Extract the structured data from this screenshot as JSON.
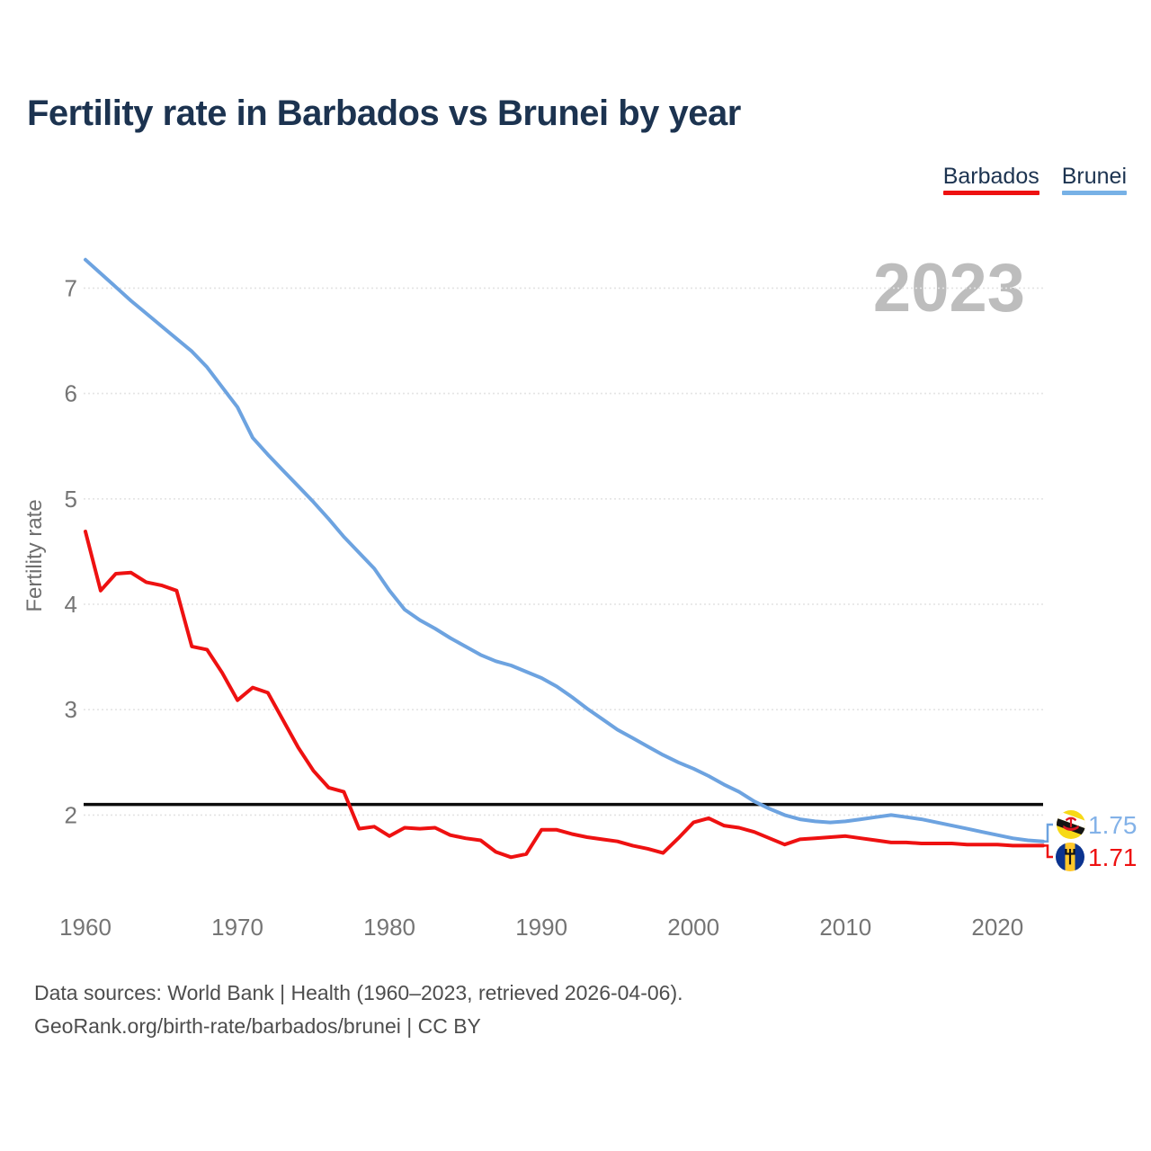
{
  "title": "Fertility rate in Barbados vs Brunei by year",
  "watermark": "2023",
  "legend": [
    {
      "label": "Barbados",
      "color": "#ee1111"
    },
    {
      "label": "Brunei",
      "color": "#77b1e6"
    }
  ],
  "y_axis": {
    "label": "Fertility rate",
    "ticks": [
      2,
      3,
      4,
      5,
      6,
      7
    ]
  },
  "x_axis": {
    "ticks": [
      1960,
      1970,
      1980,
      1990,
      2000,
      2010,
      2020
    ]
  },
  "end_labels": [
    {
      "series": "Brunei",
      "value": "1.75",
      "flag": "brunei-flag"
    },
    {
      "series": "Barbados",
      "value": "1.71",
      "flag": "barbados-flag"
    }
  ],
  "footer": {
    "line1": "Data sources: World Bank | Health (1960–2023, retrieved 2026-04-06).",
    "line2": "GeoRank.org/birth-rate/barbados/brunei | CC BY"
  },
  "colors": {
    "barbados": "#ee1111",
    "brunei": "#6da3e0",
    "brunei_value_text": "#83b2e8",
    "title_text": "#1c3350",
    "axis_text": "#757575",
    "footer_text": "#4d4d4d",
    "watermark": "#bdbdbd",
    "gridline": "#e4e4e4",
    "reference_line": "#0b0b0b"
  },
  "chart_data": {
    "type": "line",
    "title": "Fertility rate in Barbados vs Brunei by year",
    "xlabel": "",
    "ylabel": "Fertility rate",
    "xlim": [
      1960,
      2023
    ],
    "ylim": [
      1.3,
      7.5
    ],
    "grid": "horizontal-dashed",
    "legend_position": "top-right",
    "reference_line": {
      "value": 2.1,
      "color": "#0b0b0b"
    },
    "x": [
      1960,
      1961,
      1962,
      1963,
      1964,
      1965,
      1966,
      1967,
      1968,
      1969,
      1970,
      1971,
      1972,
      1973,
      1974,
      1975,
      1976,
      1977,
      1978,
      1979,
      1980,
      1981,
      1982,
      1983,
      1984,
      1985,
      1986,
      1987,
      1988,
      1989,
      1990,
      1991,
      1992,
      1993,
      1994,
      1995,
      1996,
      1997,
      1998,
      1999,
      2000,
      2001,
      2002,
      2003,
      2004,
      2005,
      2006,
      2007,
      2008,
      2009,
      2010,
      2011,
      2012,
      2013,
      2014,
      2015,
      2016,
      2017,
      2018,
      2019,
      2020,
      2021,
      2022,
      2023
    ],
    "series": [
      {
        "name": "Barbados",
        "color": "#ee1111",
        "values": [
          4.69,
          4.13,
          4.29,
          4.3,
          4.21,
          4.18,
          4.13,
          3.6,
          3.57,
          3.35,
          3.09,
          3.21,
          3.16,
          2.9,
          2.64,
          2.42,
          2.26,
          2.22,
          1.87,
          1.89,
          1.8,
          1.88,
          1.87,
          1.88,
          1.81,
          1.78,
          1.76,
          1.65,
          1.6,
          1.63,
          1.86,
          1.86,
          1.82,
          1.79,
          1.77,
          1.75,
          1.71,
          1.68,
          1.64,
          1.78,
          1.93,
          1.97,
          1.9,
          1.88,
          1.84,
          1.78,
          1.72,
          1.77,
          1.78,
          1.79,
          1.8,
          1.78,
          1.76,
          1.74,
          1.74,
          1.73,
          1.73,
          1.73,
          1.72,
          1.72,
          1.72,
          1.71,
          1.71,
          1.71
        ]
      },
      {
        "name": "Brunei",
        "color": "#6da3e0",
        "values": [
          7.27,
          7.14,
          7.01,
          6.88,
          6.76,
          6.64,
          6.52,
          6.4,
          6.25,
          6.06,
          5.87,
          5.58,
          5.42,
          5.27,
          5.12,
          4.97,
          4.81,
          4.64,
          4.49,
          4.34,
          4.13,
          3.95,
          3.85,
          3.77,
          3.68,
          3.6,
          3.52,
          3.46,
          3.42,
          3.36,
          3.3,
          3.22,
          3.12,
          3.01,
          2.91,
          2.81,
          2.73,
          2.65,
          2.57,
          2.5,
          2.44,
          2.37,
          2.29,
          2.22,
          2.13,
          2.06,
          2.0,
          1.96,
          1.94,
          1.93,
          1.94,
          1.96,
          1.98,
          2.0,
          1.98,
          1.96,
          1.93,
          1.9,
          1.87,
          1.84,
          1.81,
          1.78,
          1.76,
          1.75
        ]
      }
    ]
  }
}
